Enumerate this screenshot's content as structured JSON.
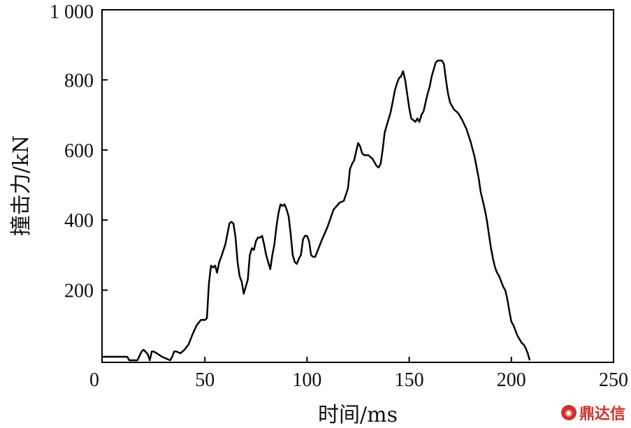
{
  "chart_data": {
    "type": "line",
    "xlabel": "时间/ms",
    "ylabel": "撞击力/kN",
    "xlim": [
      0,
      250
    ],
    "ylim": [
      0,
      1000
    ],
    "x_ticks": [
      0,
      50,
      100,
      150,
      200,
      250
    ],
    "y_ticks": [
      200,
      400,
      600,
      800,
      1000
    ],
    "x_tick_labels": [
      "0",
      "50",
      "100",
      "150",
      "200",
      "250"
    ],
    "y_tick_labels": [
      "200",
      "400",
      "600",
      "800",
      "1 000"
    ],
    "grid": false,
    "series": [
      {
        "x": [
          0,
          12,
          13,
          17,
          19,
          20,
          22,
          23,
          24,
          25,
          27,
          29,
          31,
          33,
          34,
          35,
          36,
          38,
          40,
          42,
          44,
          46,
          48,
          50,
          51,
          52,
          53,
          54,
          55,
          56,
          57,
          58,
          60,
          61,
          62,
          63,
          64,
          65,
          66,
          67,
          68,
          69,
          70,
          71,
          72,
          73,
          74,
          75,
          76,
          77,
          78,
          79,
          80,
          81,
          82,
          83,
          84,
          85,
          86,
          87,
          88,
          89,
          90,
          91,
          92,
          93,
          94,
          95,
          96,
          97,
          98,
          99,
          100,
          101,
          102,
          103,
          104,
          105,
          107,
          110,
          113,
          116,
          118,
          120,
          121,
          122,
          123,
          124,
          125,
          126,
          127,
          128,
          130,
          132,
          134,
          135,
          136,
          137,
          138,
          140,
          141,
          142,
          143,
          144,
          145,
          146,
          147,
          148,
          149,
          150,
          151,
          152,
          153,
          154,
          155,
          156,
          157,
          158,
          159,
          160,
          161,
          162,
          163,
          164,
          165,
          166,
          167,
          168,
          169,
          170,
          171,
          172,
          173,
          174,
          176,
          178,
          180,
          182,
          184,
          185,
          186,
          187,
          188,
          189,
          190,
          191,
          192,
          193,
          194,
          195,
          196,
          197,
          198,
          199,
          200,
          201,
          202,
          203,
          204,
          205,
          206,
          207,
          208,
          209
        ],
        "y": [
          10,
          10,
          0,
          0,
          25,
          30,
          18,
          0,
          25,
          25,
          18,
          10,
          5,
          0,
          10,
          25,
          25,
          20,
          30,
          45,
          75,
          100,
          115,
          115,
          120,
          220,
          270,
          265,
          270,
          250,
          280,
          295,
          330,
          360,
          390,
          395,
          390,
          350,
          280,
          240,
          225,
          190,
          210,
          230,
          300,
          320,
          315,
          340,
          350,
          350,
          355,
          330,
          300,
          280,
          260,
          300,
          330,
          380,
          420,
          445,
          440,
          445,
          430,
          410,
          360,
          300,
          280,
          275,
          290,
          300,
          345,
          355,
          355,
          340,
          300,
          295,
          295,
          310,
          340,
          380,
          430,
          450,
          455,
          490,
          545,
          560,
          570,
          595,
          620,
          610,
          590,
          585,
          585,
          575,
          555,
          550,
          560,
          600,
          650,
          690,
          710,
          740,
          770,
          790,
          805,
          810,
          825,
          800,
          760,
          720,
          690,
          685,
          680,
          690,
          680,
          700,
          710,
          735,
          760,
          780,
          810,
          830,
          850,
          855,
          855,
          855,
          845,
          800,
          760,
          735,
          725,
          715,
          710,
          705,
          685,
          660,
          625,
          580,
          520,
          480,
          455,
          430,
          400,
          360,
          320,
          290,
          265,
          250,
          240,
          225,
          210,
          200,
          175,
          140,
          110,
          100,
          85,
          70,
          60,
          50,
          45,
          35,
          20,
          0
        ]
      }
    ]
  }
}
